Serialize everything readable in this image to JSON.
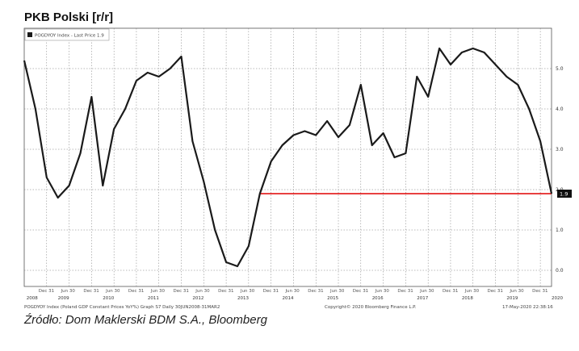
{
  "title": "PKB Polski [r/r]",
  "source": "Źródło: Dom Maklerski BDM S.A., Bloomberg",
  "legend_label": "POGDYOY Index - Last Price 1.9",
  "last_price_label": "1.9",
  "footer_left": "POGDYOY Index (Poland GDP Constant Prices YoY%) Graph S7 Daily 30JUN2008-31MAR2",
  "footer_center": "Copyright© 2020 Bloomberg Finance L.P.",
  "footer_right": "17-May-2020 22:38:16",
  "colors": {
    "series": "#1a1a1a",
    "reference_line": "#e00000",
    "grid": "#777777"
  },
  "chart_data": {
    "type": "line",
    "title": "PKB Polski [r/r]",
    "xlabel": "",
    "ylabel": "",
    "ylim": [
      -0.4,
      6.0
    ],
    "yticks": [
      "0.0",
      "1.0",
      "2.0",
      "3.0",
      "4.0",
      "5.0"
    ],
    "xlim": [
      2008.5,
      2020.25
    ],
    "x_tick_labels": [
      "Dec 31",
      "Jun 30",
      "Dec 31",
      "Jun 30",
      "Dec 31",
      "Jun 30",
      "Dec 31",
      "Jun 30",
      "Dec 31",
      "Jun 30",
      "Dec 31",
      "Jun 30",
      "Dec 31",
      "Jun 30",
      "Dec 31",
      "Jun 30",
      "Dec 31",
      "Jun 30",
      "Dec 31",
      "Jun 30",
      "Dec 31",
      "Jun 30",
      "Dec 31",
      "Jun 30"
    ],
    "x_year_labels": [
      "2008",
      "2009",
      "2010",
      "2011",
      "2012",
      "2013",
      "2014",
      "2015",
      "2016",
      "2017",
      "2018",
      "2019",
      "2020"
    ],
    "grid": true,
    "legend_position": "top-left",
    "series": [
      {
        "name": "POGDYOY Index",
        "x": [
          2008.5,
          2008.75,
          2009.0,
          2009.25,
          2009.5,
          2009.75,
          2010.0,
          2010.25,
          2010.5,
          2010.75,
          2011.0,
          2011.25,
          2011.5,
          2011.75,
          2012.0,
          2012.25,
          2012.5,
          2012.75,
          2013.0,
          2013.25,
          2013.5,
          2013.75,
          2014.0,
          2014.25,
          2014.5,
          2014.75,
          2015.0,
          2015.25,
          2015.5,
          2015.75,
          2016.0,
          2016.25,
          2016.5,
          2016.75,
          2017.0,
          2017.25,
          2017.5,
          2017.75,
          2018.0,
          2018.25,
          2018.5,
          2018.75,
          2019.0,
          2019.25,
          2019.5,
          2019.75,
          2020.0,
          2020.25
        ],
        "values": [
          5.2,
          4.0,
          2.3,
          1.8,
          2.1,
          2.9,
          4.3,
          2.1,
          3.5,
          4.0,
          4.7,
          4.9,
          4.8,
          5.0,
          5.3,
          3.2,
          2.2,
          1.0,
          0.2,
          0.1,
          0.6,
          1.9,
          2.7,
          3.1,
          3.35,
          3.45,
          3.35,
          3.7,
          3.3,
          3.6,
          4.6,
          3.1,
          3.4,
          2.8,
          2.9,
          4.8,
          4.3,
          5.5,
          5.1,
          5.4,
          5.5,
          5.4,
          5.1,
          4.8,
          4.6,
          4.0,
          3.2,
          1.9
        ]
      }
    ],
    "reference_line": {
      "value": 1.9,
      "from_x": 2013.75,
      "to_x": 2020.25
    }
  }
}
